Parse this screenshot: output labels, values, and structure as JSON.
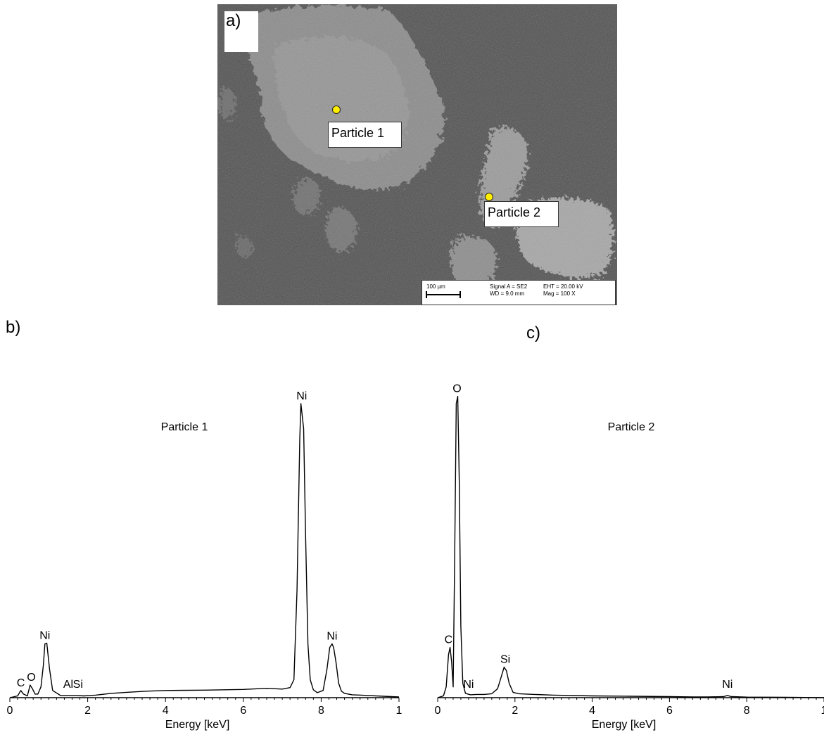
{
  "sem_image": {
    "panel_label": "a)",
    "particles": [
      {
        "label": "Particle 1",
        "marker_color": "#ffee00"
      },
      {
        "label": "Particle 2",
        "marker_color": "#ffee00"
      }
    ],
    "info_bar": {
      "scale": "100 µm",
      "signal": "Signal A = SE2",
      "wd": "WD =  9.0 mm",
      "eht": "EHT = 20.00 kV",
      "mag": "Mag =    100 X"
    }
  },
  "chart_data": [
    {
      "type": "line",
      "panel_label": "b)",
      "title": "Particle 1",
      "xlabel": "Energy [keV]",
      "ylabel": "",
      "xlim": [
        0,
        10
      ],
      "ylim": [
        0,
        100
      ],
      "xticks": [
        "0",
        "2",
        "4",
        "6",
        "8",
        "1"
      ],
      "grid": false,
      "x": [
        0,
        0.2,
        0.28,
        0.35,
        0.45,
        0.52,
        0.58,
        0.65,
        0.72,
        0.8,
        0.86,
        0.9,
        0.95,
        1.02,
        1.1,
        1.3,
        1.5,
        1.7,
        1.9,
        2.2,
        2.6,
        3,
        3.5,
        4,
        5,
        6,
        6.6,
        7,
        7.2,
        7.3,
        7.38,
        7.45,
        7.48,
        7.55,
        7.6,
        7.66,
        7.72,
        7.8,
        7.9,
        8.05,
        8.15,
        8.22,
        8.28,
        8.32,
        8.38,
        8.45,
        8.52,
        8.6,
        8.8,
        9.2,
        9.6,
        10
      ],
      "y": [
        0,
        0.5,
        2,
        1,
        0.5,
        3.5,
        2.5,
        1,
        1,
        3,
        9,
        15,
        15.2,
        8,
        2,
        0.6,
        0.6,
        0.6,
        0.5,
        0.7,
        1.2,
        1.5,
        1.8,
        2,
        2.1,
        2.3,
        2.6,
        2.4,
        2.8,
        5,
        30,
        72,
        82,
        75,
        45,
        15,
        5,
        2.2,
        1.4,
        2,
        8,
        14,
        15,
        14,
        10,
        4,
        1.8,
        1.2,
        0.8,
        0.6,
        0.4,
        0.2
      ],
      "peak_labels": [
        {
          "text": "C",
          "x": 0.28
        },
        {
          "text": "O",
          "x": 0.55
        },
        {
          "text": "Ni",
          "x": 0.9
        },
        {
          "text": "Al",
          "x": 1.5
        },
        {
          "text": "Si",
          "x": 1.75
        },
        {
          "text": "Ni",
          "x": 7.5
        },
        {
          "text": "Ni",
          "x": 8.28
        }
      ]
    },
    {
      "type": "line",
      "panel_label": "c)",
      "title": "Particle 2",
      "xlabel": "Energy [keV]",
      "ylabel": "",
      "xlim": [
        0,
        10
      ],
      "ylim": [
        0,
        100
      ],
      "xticks": [
        "0",
        "2",
        "4",
        "6",
        "8",
        "1"
      ],
      "grid": false,
      "x": [
        0,
        0.15,
        0.22,
        0.28,
        0.32,
        0.36,
        0.4,
        0.44,
        0.48,
        0.52,
        0.56,
        0.6,
        0.65,
        0.72,
        0.85,
        1,
        1.2,
        1.4,
        1.55,
        1.65,
        1.72,
        1.78,
        1.85,
        1.95,
        2.1,
        2.5,
        3,
        4,
        5,
        6,
        6.6,
        7,
        7.4,
        7.5,
        7.6,
        8,
        9,
        10
      ],
      "y": [
        0,
        0.5,
        3,
        12,
        14,
        10,
        3,
        40,
        82,
        84,
        60,
        20,
        4,
        1.2,
        0.8,
        0.9,
        0.9,
        1.1,
        2.5,
        6,
        8.5,
        7.5,
        4,
        1.5,
        1.1,
        0.9,
        0.7,
        0.5,
        0.4,
        0.3,
        0.2,
        0.2,
        0.3,
        0.6,
        0.3,
        0.15,
        0.1,
        0
      ],
      "peak_labels": [
        {
          "text": "C",
          "x": 0.28
        },
        {
          "text": "O",
          "x": 0.5
        },
        {
          "text": "Ni",
          "x": 0.8
        },
        {
          "text": "Si",
          "x": 1.75
        },
        {
          "text": "Ni",
          "x": 7.5
        }
      ]
    }
  ]
}
